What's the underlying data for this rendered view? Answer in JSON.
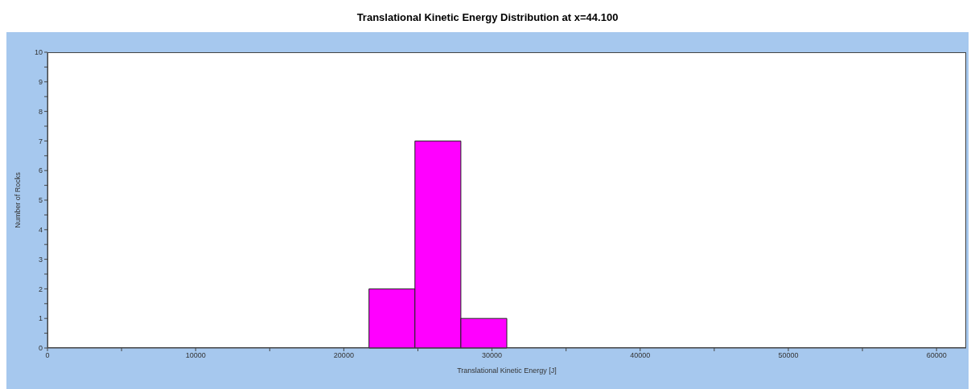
{
  "chart_data": {
    "type": "histogram",
    "title": "Translational Kinetic Energy Distribution at x=44.100",
    "xlabel": "Translational Kinetic Energy [J]",
    "ylabel": "Number of Rocks",
    "bins": [
      21700,
      24800,
      27900,
      31000
    ],
    "values": [
      2,
      7,
      1
    ],
    "color": "#ff00ff",
    "xlim": [
      0,
      62000
    ],
    "xticks": [
      0,
      {
        "value": 5000,
        "label": null
      },
      10000,
      {
        "value": 15000,
        "label": null
      },
      20000,
      {
        "value": 25000,
        "label": null
      },
      30000,
      {
        "value": 35000,
        "label": null
      },
      40000,
      {
        "value": 45000,
        "label": null
      },
      50000,
      {
        "value": 55000,
        "label": null
      },
      60000
    ],
    "ylim": [
      0,
      10
    ],
    "yticks": [
      0,
      {
        "value": 0.5,
        "label": null
      },
      1,
      {
        "value": 1.5,
        "label": null
      },
      2,
      {
        "value": 2.5,
        "label": null
      },
      3,
      {
        "value": 3.5,
        "label": null
      },
      4,
      {
        "value": 4.5,
        "label": null
      },
      5,
      {
        "value": 5.5,
        "label": null
      },
      6,
      {
        "value": 6.5,
        "label": null
      },
      7,
      {
        "value": 7.5,
        "label": null
      },
      8,
      {
        "value": 8.5,
        "label": null
      },
      9,
      {
        "value": 9.5,
        "label": null
      },
      10
    ],
    "tick_labels": "xy"
  }
}
